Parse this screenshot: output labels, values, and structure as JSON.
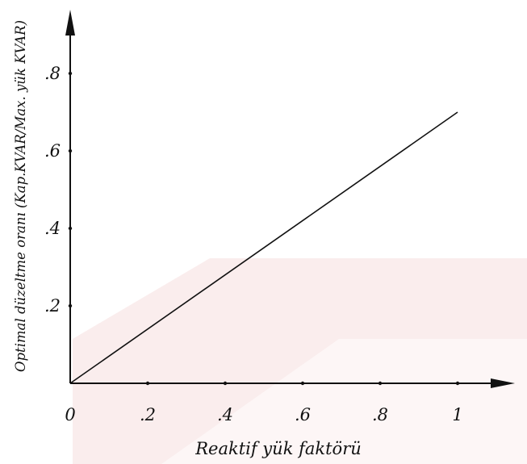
{
  "colors": {
    "ink": "#111111",
    "watermark": "#f2cccc",
    "background": "#ffffff"
  },
  "chart_data": {
    "type": "line",
    "title": "",
    "xlabel": "Reaktif yük faktörü",
    "ylabel": "Optimal düzeltme oranı (Kap.KVAR/Max. yük KVAR)",
    "xlim": [
      0,
      1.12
    ],
    "ylim": [
      0,
      0.92
    ],
    "x_ticks": [
      {
        "value": 0,
        "label": "0"
      },
      {
        "value": 0.2,
        "label": ".2"
      },
      {
        "value": 0.4,
        "label": ".4"
      },
      {
        "value": 0.6,
        "label": ".6"
      },
      {
        "value": 0.8,
        "label": ".8"
      },
      {
        "value": 1.0,
        "label": "1"
      }
    ],
    "y_ticks": [
      {
        "value": 0.2,
        "label": ".2"
      },
      {
        "value": 0.4,
        "label": ".4"
      },
      {
        "value": 0.6,
        "label": ".6"
      },
      {
        "value": 0.8,
        "label": ".8"
      }
    ],
    "grid": false,
    "series": [
      {
        "x": [
          0,
          1.0
        ],
        "y": [
          0,
          0.7
        ]
      }
    ]
  }
}
